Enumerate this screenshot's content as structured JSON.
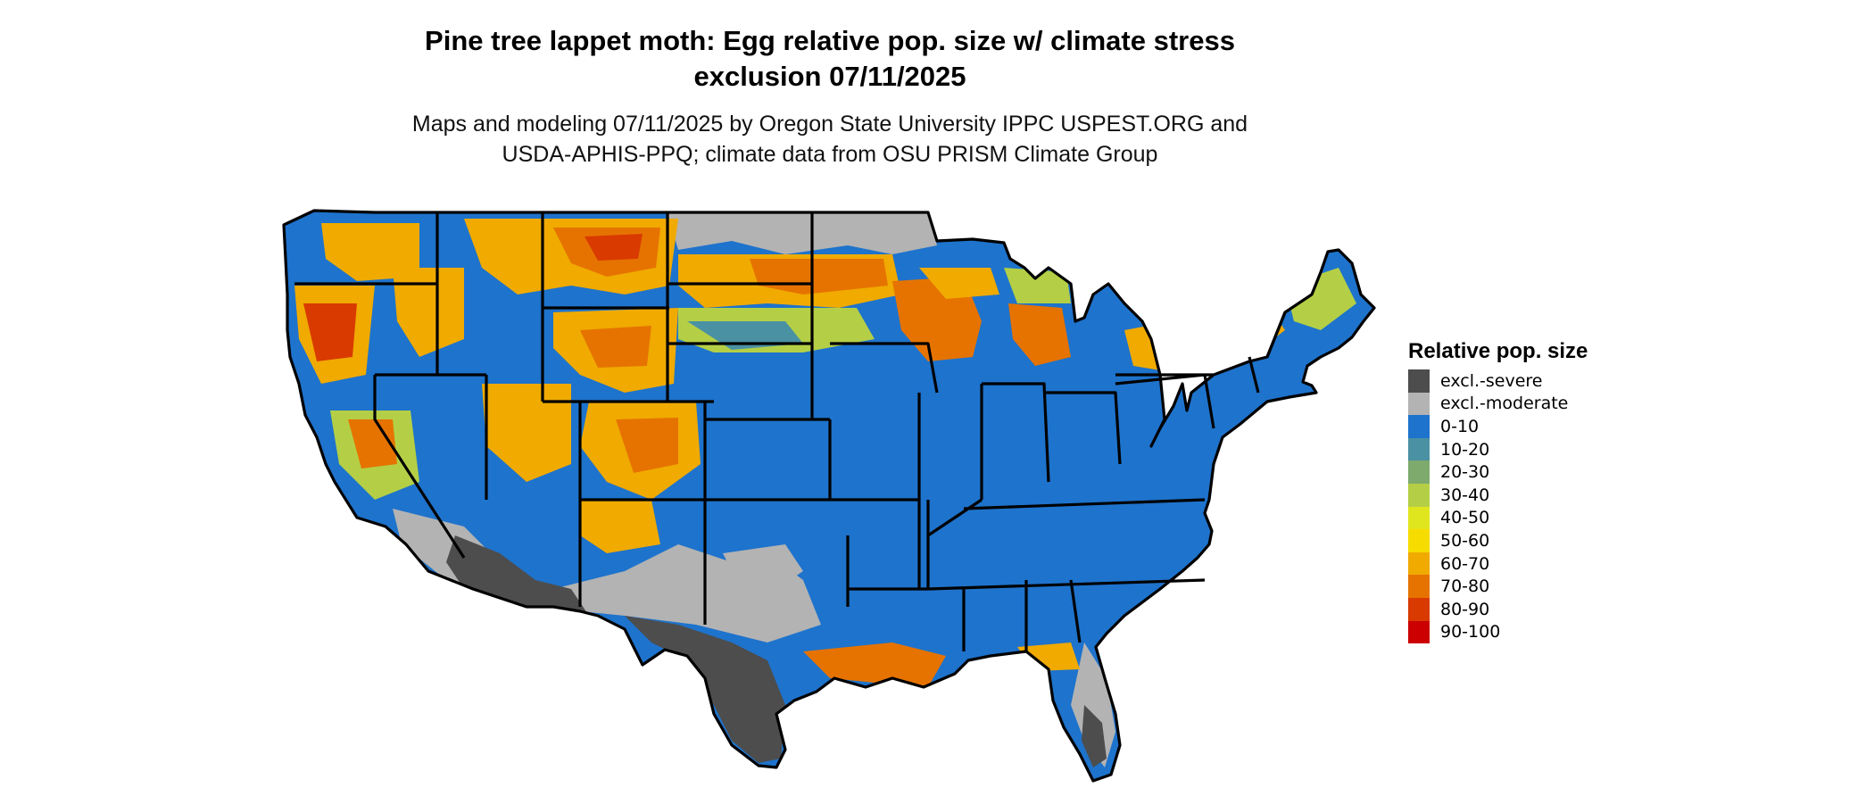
{
  "title_line1": "Pine tree lappet moth: Egg relative pop. size w/ climate stress",
  "title_line2": "exclusion 07/11/2025",
  "subtitle_line1": "Maps and modeling 07/11/2025 by Oregon State University IPPC USPEST.ORG and",
  "subtitle_line2": "USDA-APHIS-PPQ; climate data from OSU PRISM Climate Group",
  "legend": {
    "title": "Relative pop. size",
    "items": [
      {
        "label": "excl.-severe",
        "color": "#4d4d4d"
      },
      {
        "label": "excl.-moderate",
        "color": "#b3b3b3"
      },
      {
        "label": "0-10",
        "color": "#1e73cc"
      },
      {
        "label": "10-20",
        "color": "#4a91a3"
      },
      {
        "label": "20-30",
        "color": "#7eaa6e"
      },
      {
        "label": "30-40",
        "color": "#b4cf46"
      },
      {
        "label": "40-50",
        "color": "#e0e61e"
      },
      {
        "label": "50-60",
        "color": "#f7dc00"
      },
      {
        "label": "60-70",
        "color": "#f0aa00"
      },
      {
        "label": "70-80",
        "color": "#e67300"
      },
      {
        "label": "80-90",
        "color": "#d93a00"
      },
      {
        "label": "90-100",
        "color": "#cc0000"
      }
    ]
  },
  "map": {
    "region": "Contiguous United States",
    "boundary_color": "#000000"
  }
}
